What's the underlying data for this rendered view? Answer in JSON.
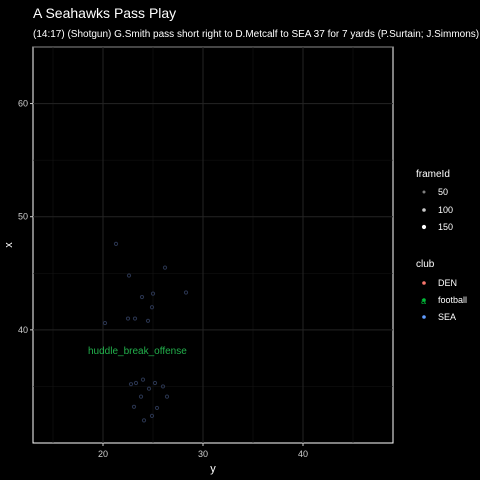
{
  "chart_data": {
    "type": "scatter",
    "title": "A Seahawks Pass Play",
    "subtitle": "(14:17) (Shotgun) G.Smith pass short right to D.Metcalf to SEA 37 for 7 yards (P.Surtain; J.Simmons).",
    "xlabel": "y",
    "ylabel": "x",
    "xlim": [
      13,
      49
    ],
    "ylim": [
      30,
      65
    ],
    "x_ticks": [
      20,
      30,
      40
    ],
    "y_ticks": [
      40,
      50,
      60
    ],
    "grid": true,
    "annotations": [
      {
        "text": "huddle_break_offense",
        "x": 22.3,
        "y": 38.2,
        "color": "#22b14c"
      }
    ],
    "legends": [
      {
        "title": "frameId",
        "entries": [
          {
            "label": "50",
            "value": 50
          },
          {
            "label": "100",
            "value": 100
          },
          {
            "label": "150",
            "value": 150
          }
        ]
      },
      {
        "title": "club",
        "entries": [
          {
            "label": "DEN",
            "color": "#f8766d",
            "glyph": ""
          },
          {
            "label": "football",
            "color": "#00ba38",
            "glyph": "a"
          },
          {
            "label": "SEA",
            "color": "#619cff",
            "glyph": ""
          }
        ]
      }
    ],
    "series": [
      {
        "name": "SEA",
        "color": "#2a3550",
        "points": [
          {
            "x": 21.3,
            "y": 47.6
          },
          {
            "x": 22.6,
            "y": 44.8
          },
          {
            "x": 26.2,
            "y": 45.5
          },
          {
            "x": 23.9,
            "y": 42.9
          },
          {
            "x": 25.0,
            "y": 43.2
          },
          {
            "x": 28.3,
            "y": 43.3
          },
          {
            "x": 24.9,
            "y": 42.0
          },
          {
            "x": 22.5,
            "y": 41.0
          },
          {
            "x": 23.2,
            "y": 41.0
          },
          {
            "x": 24.5,
            "y": 40.8
          },
          {
            "x": 20.2,
            "y": 40.6
          }
        ]
      },
      {
        "name": "DEN",
        "color": "#2a3550",
        "points": [
          {
            "x": 22.8,
            "y": 35.2
          },
          {
            "x": 23.3,
            "y": 35.3
          },
          {
            "x": 24.0,
            "y": 35.6
          },
          {
            "x": 25.2,
            "y": 35.3
          },
          {
            "x": 26.0,
            "y": 35.0
          },
          {
            "x": 24.6,
            "y": 34.8
          },
          {
            "x": 23.8,
            "y": 34.1
          },
          {
            "x": 26.4,
            "y": 34.1
          },
          {
            "x": 23.1,
            "y": 33.2
          },
          {
            "x": 25.4,
            "y": 33.1
          },
          {
            "x": 24.9,
            "y": 32.4
          },
          {
            "x": 24.1,
            "y": 32.0
          }
        ]
      }
    ]
  }
}
